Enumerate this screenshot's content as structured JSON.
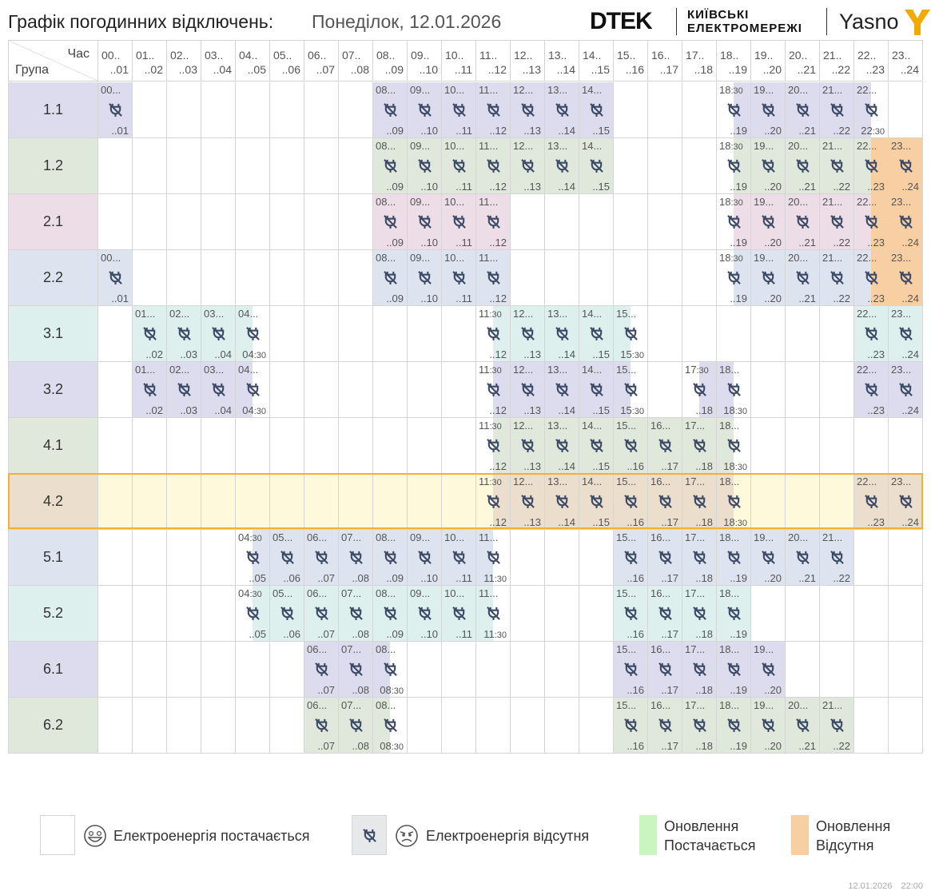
{
  "header": {
    "title": "Графік погодинних відключень:",
    "date_label": "Понеділок, 12.01.2026",
    "logo_dtek": "DTEK",
    "logo_kyiv_line1": "КИЇВСЬКІ",
    "logo_kyiv_line2": "ЕЛЕКТРОМЕРЕЖІ",
    "logo_yasno": "Yasno"
  },
  "table": {
    "corner_hour": "Час",
    "corner_group": "Група",
    "hours": [
      {
        "start": "00..",
        "end": "..01"
      },
      {
        "start": "01..",
        "end": "..02"
      },
      {
        "start": "02..",
        "end": "..03"
      },
      {
        "start": "03..",
        "end": "..04"
      },
      {
        "start": "04..",
        "end": "..05"
      },
      {
        "start": "05..",
        "end": "..06"
      },
      {
        "start": "06..",
        "end": "..07"
      },
      {
        "start": "07..",
        "end": "..08"
      },
      {
        "start": "08..",
        "end": "..09"
      },
      {
        "start": "09..",
        "end": "..10"
      },
      {
        "start": "10..",
        "end": "..11"
      },
      {
        "start": "11..",
        "end": "..12"
      },
      {
        "start": "12..",
        "end": "..13"
      },
      {
        "start": "13..",
        "end": "..14"
      },
      {
        "start": "14..",
        "end": "..15"
      },
      {
        "start": "15..",
        "end": "..16"
      },
      {
        "start": "16..",
        "end": "..17"
      },
      {
        "start": "17..",
        "end": "..18"
      },
      {
        "start": "18..",
        "end": "..19"
      },
      {
        "start": "19..",
        "end": "..20"
      },
      {
        "start": "20..",
        "end": "..21"
      },
      {
        "start": "21..",
        "end": "..22"
      },
      {
        "start": "22..",
        "end": "..23"
      },
      {
        "start": "23..",
        "end": "..24"
      }
    ],
    "groups": [
      {
        "name": "1.1",
        "color": "#dcdcee",
        "outages": [
          {
            "h": 0,
            "s": "00...",
            "e": "..01"
          },
          {
            "h": 8,
            "s": "08...",
            "e": "..09"
          },
          {
            "h": 9,
            "s": "09...",
            "e": "..10"
          },
          {
            "h": 10,
            "s": "10...",
            "e": "..11"
          },
          {
            "h": 11,
            "s": "11...",
            "e": "..12"
          },
          {
            "h": 12,
            "s": "12...",
            "e": "..13"
          },
          {
            "h": 13,
            "s": "13...",
            "e": "..14"
          },
          {
            "h": 14,
            "s": "14...",
            "e": "..15"
          },
          {
            "h": 18,
            "s": "18:30",
            "e": "..19",
            "half": "second"
          },
          {
            "h": 19,
            "s": "19...",
            "e": "..20"
          },
          {
            "h": 20,
            "s": "20...",
            "e": "..21"
          },
          {
            "h": 21,
            "s": "21...",
            "e": "..22"
          },
          {
            "h": 22,
            "s": "22...",
            "e": "22:30",
            "half": "first"
          }
        ]
      },
      {
        "name": "1.2",
        "color": "#e0e8dc",
        "outages": [
          {
            "h": 8,
            "s": "08...",
            "e": "..09"
          },
          {
            "h": 9,
            "s": "09...",
            "e": "..10"
          },
          {
            "h": 10,
            "s": "10...",
            "e": "..11"
          },
          {
            "h": 11,
            "s": "11...",
            "e": "..12"
          },
          {
            "h": 12,
            "s": "12...",
            "e": "..13"
          },
          {
            "h": 13,
            "s": "13...",
            "e": "..14"
          },
          {
            "h": 14,
            "s": "14...",
            "e": "..15"
          },
          {
            "h": 18,
            "s": "18:30",
            "e": "..19",
            "half": "second"
          },
          {
            "h": 19,
            "s": "19...",
            "e": "..20"
          },
          {
            "h": 20,
            "s": "20...",
            "e": "..21"
          },
          {
            "h": 21,
            "s": "21...",
            "e": "..22"
          },
          {
            "h": 22,
            "s": "22...",
            "e": "..23",
            "update": "second"
          },
          {
            "h": 23,
            "s": "23...",
            "e": "..24",
            "update": "full"
          }
        ]
      },
      {
        "name": "2.1",
        "color": "#ecdde6",
        "outages": [
          {
            "h": 8,
            "s": "08...",
            "e": "..09"
          },
          {
            "h": 9,
            "s": "09...",
            "e": "..10"
          },
          {
            "h": 10,
            "s": "10...",
            "e": "..11"
          },
          {
            "h": 11,
            "s": "11...",
            "e": "..12"
          },
          {
            "h": 18,
            "s": "18:30",
            "e": "..19",
            "half": "second"
          },
          {
            "h": 19,
            "s": "19...",
            "e": "..20"
          },
          {
            "h": 20,
            "s": "20...",
            "e": "..21"
          },
          {
            "h": 21,
            "s": "21...",
            "e": "..22"
          },
          {
            "h": 22,
            "s": "22...",
            "e": "..23",
            "update": "second"
          },
          {
            "h": 23,
            "s": "23...",
            "e": "..24",
            "update": "full"
          }
        ]
      },
      {
        "name": "2.2",
        "color": "#dde4ef",
        "outages": [
          {
            "h": 0,
            "s": "00...",
            "e": "..01"
          },
          {
            "h": 8,
            "s": "08...",
            "e": "..09"
          },
          {
            "h": 9,
            "s": "09...",
            "e": "..10"
          },
          {
            "h": 10,
            "s": "10...",
            "e": "..11"
          },
          {
            "h": 11,
            "s": "11...",
            "e": "..12"
          },
          {
            "h": 18,
            "s": "18:30",
            "e": "..19",
            "half": "second"
          },
          {
            "h": 19,
            "s": "19...",
            "e": "..20"
          },
          {
            "h": 20,
            "s": "20...",
            "e": "..21"
          },
          {
            "h": 21,
            "s": "21...",
            "e": "..22"
          },
          {
            "h": 22,
            "s": "22...",
            "e": "..23",
            "update": "second"
          },
          {
            "h": 23,
            "s": "23...",
            "e": "..24",
            "update": "full"
          }
        ]
      },
      {
        "name": "3.1",
        "color": "#ddf0ee",
        "outages": [
          {
            "h": 1,
            "s": "01...",
            "e": "..02"
          },
          {
            "h": 2,
            "s": "02...",
            "e": "..03"
          },
          {
            "h": 3,
            "s": "03...",
            "e": "..04"
          },
          {
            "h": 4,
            "s": "04...",
            "e": "04:30",
            "half": "first"
          },
          {
            "h": 11,
            "s": "11:30",
            "e": "..12",
            "half": "second"
          },
          {
            "h": 12,
            "s": "12...",
            "e": "..13"
          },
          {
            "h": 13,
            "s": "13...",
            "e": "..14"
          },
          {
            "h": 14,
            "s": "14...",
            "e": "..15"
          },
          {
            "h": 15,
            "s": "15...",
            "e": "15:30",
            "half": "first"
          },
          {
            "h": 22,
            "s": "22...",
            "e": "..23"
          },
          {
            "h": 23,
            "s": "23...",
            "e": "..24"
          }
        ]
      },
      {
        "name": "3.2",
        "color": "#dcdcee",
        "outages": [
          {
            "h": 1,
            "s": "01...",
            "e": "..02"
          },
          {
            "h": 2,
            "s": "02...",
            "e": "..03"
          },
          {
            "h": 3,
            "s": "03...",
            "e": "..04"
          },
          {
            "h": 4,
            "s": "04...",
            "e": "04:30",
            "half": "first"
          },
          {
            "h": 11,
            "s": "11:30",
            "e": "..12",
            "half": "second"
          },
          {
            "h": 12,
            "s": "12...",
            "e": "..13"
          },
          {
            "h": 13,
            "s": "13...",
            "e": "..14"
          },
          {
            "h": 14,
            "s": "14...",
            "e": "..15"
          },
          {
            "h": 15,
            "s": "15...",
            "e": "15:30",
            "half": "first"
          },
          {
            "h": 17,
            "s": "17:30",
            "e": "..18",
            "half": "second"
          },
          {
            "h": 18,
            "s": "18...",
            "e": "18:30",
            "half": "first"
          },
          {
            "h": 22,
            "s": "22...",
            "e": "..23"
          },
          {
            "h": 23,
            "s": "23...",
            "e": "..24"
          }
        ]
      },
      {
        "name": "4.1",
        "color": "#e0e8dc",
        "outages": [
          {
            "h": 11,
            "s": "11:30",
            "e": "..12",
            "half": "second"
          },
          {
            "h": 12,
            "s": "12...",
            "e": "..13"
          },
          {
            "h": 13,
            "s": "13...",
            "e": "..14"
          },
          {
            "h": 14,
            "s": "14...",
            "e": "..15"
          },
          {
            "h": 15,
            "s": "15...",
            "e": "..16"
          },
          {
            "h": 16,
            "s": "16...",
            "e": "..17"
          },
          {
            "h": 17,
            "s": "17...",
            "e": "..18"
          },
          {
            "h": 18,
            "s": "18...",
            "e": "18:30",
            "half": "first"
          }
        ]
      },
      {
        "name": "4.2",
        "color": "#ecdecc",
        "highlight": true,
        "row_color": "#fff9dc",
        "outages": [
          {
            "h": 11,
            "s": "11:30",
            "e": "..12",
            "half": "second"
          },
          {
            "h": 12,
            "s": "12...",
            "e": "..13"
          },
          {
            "h": 13,
            "s": "13...",
            "e": "..14"
          },
          {
            "h": 14,
            "s": "14...",
            "e": "..15"
          },
          {
            "h": 15,
            "s": "15...",
            "e": "..16"
          },
          {
            "h": 16,
            "s": "16...",
            "e": "..17"
          },
          {
            "h": 17,
            "s": "17...",
            "e": "..18"
          },
          {
            "h": 18,
            "s": "18...",
            "e": "18:30",
            "half": "first"
          },
          {
            "h": 22,
            "s": "22...",
            "e": "..23"
          },
          {
            "h": 23,
            "s": "23...",
            "e": "..24"
          }
        ]
      },
      {
        "name": "5.1",
        "color": "#dde4ef",
        "outages": [
          {
            "h": 4,
            "s": "04:30",
            "e": "..05",
            "half": "second"
          },
          {
            "h": 5,
            "s": "05...",
            "e": "..06"
          },
          {
            "h": 6,
            "s": "06...",
            "e": "..07"
          },
          {
            "h": 7,
            "s": "07...",
            "e": "..08"
          },
          {
            "h": 8,
            "s": "08...",
            "e": "..09"
          },
          {
            "h": 9,
            "s": "09...",
            "e": "..10"
          },
          {
            "h": 10,
            "s": "10...",
            "e": "..11"
          },
          {
            "h": 11,
            "s": "11...",
            "e": "11:30",
            "half": "first"
          },
          {
            "h": 15,
            "s": "15...",
            "e": "..16"
          },
          {
            "h": 16,
            "s": "16...",
            "e": "..17"
          },
          {
            "h": 17,
            "s": "17...",
            "e": "..18"
          },
          {
            "h": 18,
            "s": "18...",
            "e": "..19"
          },
          {
            "h": 19,
            "s": "19...",
            "e": "..20"
          },
          {
            "h": 20,
            "s": "20...",
            "e": "..21"
          },
          {
            "h": 21,
            "s": "21...",
            "e": "..22"
          }
        ]
      },
      {
        "name": "5.2",
        "color": "#ddf0ee",
        "outages": [
          {
            "h": 4,
            "s": "04:30",
            "e": "..05",
            "half": "second"
          },
          {
            "h": 5,
            "s": "05...",
            "e": "..06"
          },
          {
            "h": 6,
            "s": "06...",
            "e": "..07"
          },
          {
            "h": 7,
            "s": "07...",
            "e": "..08"
          },
          {
            "h": 8,
            "s": "08...",
            "e": "..09"
          },
          {
            "h": 9,
            "s": "09...",
            "e": "..10"
          },
          {
            "h": 10,
            "s": "10...",
            "e": "..11"
          },
          {
            "h": 11,
            "s": "11...",
            "e": "11:30",
            "half": "first"
          },
          {
            "h": 15,
            "s": "15...",
            "e": "..16"
          },
          {
            "h": 16,
            "s": "16...",
            "e": "..17"
          },
          {
            "h": 17,
            "s": "17...",
            "e": "..18"
          },
          {
            "h": 18,
            "s": "18...",
            "e": "..19"
          }
        ]
      },
      {
        "name": "6.1",
        "color": "#dcdcee",
        "outages": [
          {
            "h": 6,
            "s": "06...",
            "e": "..07"
          },
          {
            "h": 7,
            "s": "07...",
            "e": "..08"
          },
          {
            "h": 8,
            "s": "08...",
            "e": "08:30",
            "half": "first"
          },
          {
            "h": 15,
            "s": "15...",
            "e": "..16"
          },
          {
            "h": 16,
            "s": "16...",
            "e": "..17"
          },
          {
            "h": 17,
            "s": "17...",
            "e": "..18"
          },
          {
            "h": 18,
            "s": "18...",
            "e": "..19"
          },
          {
            "h": 19,
            "s": "19...",
            "e": "..20"
          }
        ]
      },
      {
        "name": "6.2",
        "color": "#e0e8dc",
        "outages": [
          {
            "h": 6,
            "s": "06...",
            "e": "..07"
          },
          {
            "h": 7,
            "s": "07...",
            "e": "..08"
          },
          {
            "h": 8,
            "s": "08...",
            "e": "08:30",
            "half": "first"
          },
          {
            "h": 15,
            "s": "15...",
            "e": "..16"
          },
          {
            "h": 16,
            "s": "16...",
            "e": "..17"
          },
          {
            "h": 17,
            "s": "17...",
            "e": "..18"
          },
          {
            "h": 18,
            "s": "18...",
            "e": "..19"
          },
          {
            "h": 19,
            "s": "19...",
            "e": "..20"
          },
          {
            "h": 20,
            "s": "20...",
            "e": "..21"
          },
          {
            "h": 21,
            "s": "21...",
            "e": "..22"
          }
        ]
      }
    ]
  },
  "legend": {
    "power_on": "Електроенергія постачається",
    "power_off": "Електроенергія відсутня",
    "update_on_line1": "Оновлення",
    "update_on_line2": "Постачається",
    "update_off_line1": "Оновлення",
    "update_off_line2": "Відсутня",
    "update_on_color": "#c8f5c0",
    "update_off_color": "#f8cfa3",
    "icon_off": "no-power-plug-icon",
    "icon_happy": "happy-face-icon",
    "icon_sad": "sad-face-icon"
  },
  "footer": {
    "date": "12.01.2026",
    "time": "22:00"
  }
}
